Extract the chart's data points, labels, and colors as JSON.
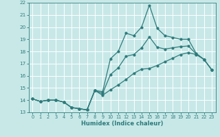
{
  "xlabel": "Humidex (Indice chaleur)",
  "xlim": [
    -0.5,
    23.5
  ],
  "ylim": [
    13,
    22
  ],
  "yticks": [
    13,
    14,
    15,
    16,
    17,
    18,
    19,
    20,
    21,
    22
  ],
  "xticks": [
    0,
    1,
    2,
    3,
    4,
    5,
    6,
    7,
    8,
    9,
    10,
    11,
    12,
    13,
    14,
    15,
    16,
    17,
    18,
    19,
    20,
    21,
    22,
    23
  ],
  "background_color": "#c8e8e8",
  "grid_color": "#ffffff",
  "line_color": "#2e7b7b",
  "hours": [
    0,
    1,
    2,
    3,
    4,
    5,
    6,
    7,
    8,
    9,
    10,
    11,
    12,
    13,
    14,
    15,
    16,
    17,
    18,
    19,
    20,
    21,
    22,
    23
  ],
  "line_min": [
    14.1,
    13.9,
    14.0,
    14.0,
    13.85,
    13.4,
    13.3,
    13.2,
    14.8,
    14.4,
    14.85,
    15.25,
    15.7,
    16.2,
    16.55,
    16.6,
    16.85,
    17.15,
    17.45,
    17.75,
    17.9,
    17.75,
    17.35,
    16.5
  ],
  "line_max": [
    14.1,
    13.9,
    14.0,
    14.0,
    13.85,
    13.4,
    13.3,
    13.2,
    14.8,
    14.7,
    17.4,
    18.0,
    19.5,
    19.3,
    20.0,
    21.8,
    19.9,
    19.3,
    19.15,
    19.0,
    19.0,
    17.85,
    17.35,
    16.5
  ],
  "line_mean": [
    14.1,
    13.9,
    14.0,
    14.0,
    13.85,
    13.4,
    13.3,
    13.2,
    14.8,
    14.55,
    16.1,
    16.65,
    17.6,
    17.75,
    18.3,
    19.2,
    18.35,
    18.2,
    18.3,
    18.4,
    18.45,
    17.8,
    17.35,
    16.5
  ]
}
